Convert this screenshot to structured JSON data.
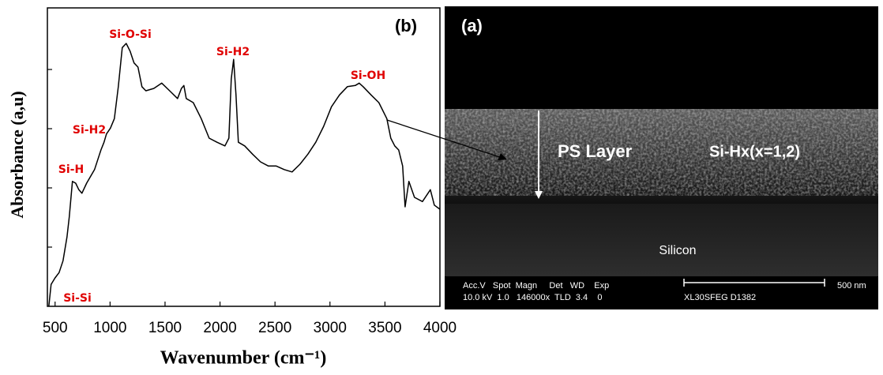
{
  "chart_data": {
    "type": "line",
    "panel_label": "(b)",
    "xlabel": "Wavenumber (cm⁻¹)",
    "ylabel": "Absorbance (a,u)",
    "xlim": [
      430,
      4000
    ],
    "xticks": [
      500,
      1000,
      1500,
      2000,
      2500,
      3000,
      3500,
      4000
    ],
    "ylim": [
      0,
      5.04
    ],
    "yticks": [
      1,
      2,
      3,
      4
    ],
    "color": "#000000",
    "x": [
      443,
      464,
      500,
      536,
      572,
      608,
      629,
      658,
      687,
      716,
      744,
      787,
      859,
      917,
      945,
      967,
      1003,
      1039,
      1075,
      1111,
      1147,
      1182,
      1218,
      1254,
      1290,
      1326,
      1398,
      1470,
      1542,
      1614,
      1649,
      1671,
      1693,
      1757,
      1829,
      1901,
      1973,
      2045,
      2081,
      2102,
      2124,
      2145,
      2167,
      2224,
      2296,
      2368,
      2440,
      2512,
      2584,
      2655,
      2727,
      2799,
      2871,
      2943,
      3014,
      3086,
      3158,
      3230,
      3266,
      3302,
      3374,
      3445,
      3517,
      3553,
      3589,
      3625,
      3661,
      3683,
      3718,
      3769,
      3841,
      3913,
      3949,
      3999
    ],
    "values": [
      0,
      0.37,
      0.48,
      0.57,
      0.77,
      1.17,
      1.51,
      2.11,
      2.08,
      1.97,
      1.91,
      2.08,
      2.31,
      2.64,
      2.77,
      2.91,
      3.01,
      3.17,
      3.71,
      4.37,
      4.44,
      4.31,
      4.11,
      4.04,
      3.71,
      3.64,
      3.68,
      3.77,
      3.64,
      3.51,
      3.68,
      3.73,
      3.51,
      3.44,
      3.17,
      2.84,
      2.77,
      2.71,
      2.84,
      3.84,
      4.17,
      3.57,
      2.77,
      2.71,
      2.57,
      2.44,
      2.37,
      2.37,
      2.31,
      2.27,
      2.4,
      2.57,
      2.77,
      3.04,
      3.37,
      3.57,
      3.71,
      3.73,
      3.77,
      3.71,
      3.57,
      3.44,
      3.17,
      2.84,
      2.71,
      2.64,
      2.37,
      1.68,
      2.11,
      1.84,
      1.77,
      1.97,
      1.71,
      1.64
    ],
    "annotations": [
      "Si-O-Si",
      "Si-H2",
      "Si-OH",
      "Si-H2",
      "Si-H",
      "Si-Si"
    ]
  },
  "image": {
    "label": "(a)",
    "layer": "PS Layer",
    "bond": "Si-Hx(x=1,2)",
    "substrate": "Silicon",
    "info_header": "Acc.V   Spot  Magn     Det   WD    Exp",
    "info_values": "10.0 kV  1.0   146000x  TLD  3.4    0",
    "instrument": "XL30SFEG D1382",
    "scale": "500 nm"
  }
}
